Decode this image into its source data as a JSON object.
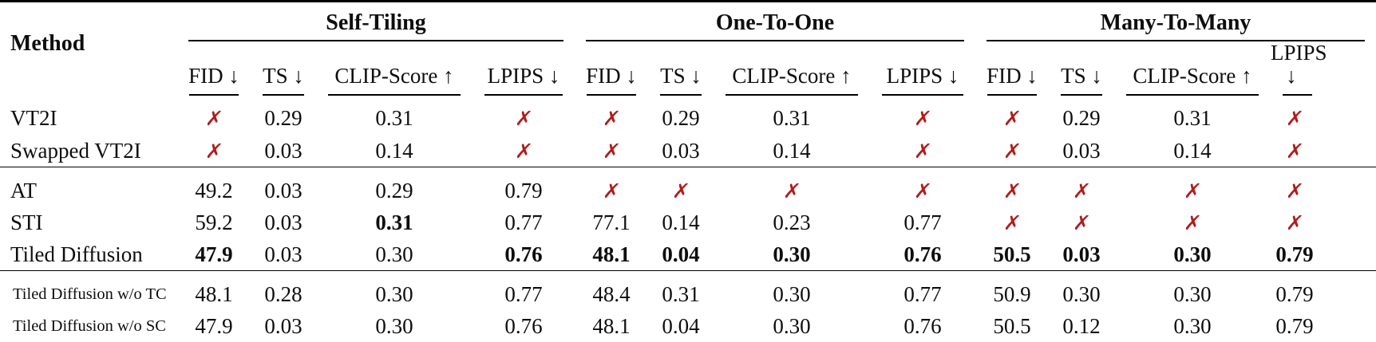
{
  "table": {
    "method_header": "Method",
    "missing_symbol": "✗",
    "missing_color": "#b11c1c",
    "groups": [
      {
        "label": "Self-Tiling"
      },
      {
        "label": "One-To-One"
      },
      {
        "label": "Many-To-Many"
      }
    ],
    "metrics": [
      "FID ↓",
      "TS ↓",
      "CLIP-Score ↑",
      "LPIPS ↓"
    ],
    "rows": [
      {
        "method": "VT2I",
        "small_label": false,
        "section_start": false,
        "cells": [
          {
            "x": true
          },
          {
            "v": "0.29"
          },
          {
            "v": "0.31"
          },
          {
            "x": true
          },
          {
            "x": true
          },
          {
            "v": "0.29"
          },
          {
            "v": "0.31"
          },
          {
            "x": true
          },
          {
            "x": true
          },
          {
            "v": "0.29"
          },
          {
            "v": "0.31"
          },
          {
            "x": true
          }
        ]
      },
      {
        "method": "Swapped VT2I",
        "small_label": false,
        "section_start": false,
        "cells": [
          {
            "x": true
          },
          {
            "v": "0.03"
          },
          {
            "v": "0.14"
          },
          {
            "x": true
          },
          {
            "x": true
          },
          {
            "v": "0.03"
          },
          {
            "v": "0.14"
          },
          {
            "x": true
          },
          {
            "x": true
          },
          {
            "v": "0.03"
          },
          {
            "v": "0.14"
          },
          {
            "x": true
          }
        ]
      },
      {
        "method": "AT",
        "small_label": false,
        "section_start": true,
        "cells": [
          {
            "v": "49.2"
          },
          {
            "v": "0.03"
          },
          {
            "v": "0.29"
          },
          {
            "v": "0.79"
          },
          {
            "x": true
          },
          {
            "x": true
          },
          {
            "x": true
          },
          {
            "x": true
          },
          {
            "x": true
          },
          {
            "x": true
          },
          {
            "x": true
          },
          {
            "x": true
          }
        ]
      },
      {
        "method": "STI",
        "small_label": false,
        "section_start": false,
        "cells": [
          {
            "v": "59.2"
          },
          {
            "v": "0.03"
          },
          {
            "v": "0.31",
            "b": true
          },
          {
            "v": "0.77"
          },
          {
            "v": "77.1"
          },
          {
            "v": "0.14"
          },
          {
            "v": "0.23"
          },
          {
            "v": "0.77"
          },
          {
            "x": true
          },
          {
            "x": true
          },
          {
            "x": true
          },
          {
            "x": true
          }
        ]
      },
      {
        "method": "Tiled Diffusion",
        "small_label": false,
        "section_start": false,
        "cells": [
          {
            "v": "47.9",
            "b": true
          },
          {
            "v": "0.03"
          },
          {
            "v": "0.30"
          },
          {
            "v": "0.76",
            "b": true
          },
          {
            "v": "48.1",
            "b": true
          },
          {
            "v": "0.04",
            "b": true
          },
          {
            "v": "0.30",
            "b": true
          },
          {
            "v": "0.76",
            "b": true
          },
          {
            "v": "50.5",
            "b": true
          },
          {
            "v": "0.03",
            "b": true
          },
          {
            "v": "0.30",
            "b": true
          },
          {
            "v": "0.79",
            "b": true
          }
        ]
      },
      {
        "method": "Tiled Diffusion w/o TC",
        "small_label": true,
        "section_start": true,
        "cells": [
          {
            "v": "48.1"
          },
          {
            "v": "0.28"
          },
          {
            "v": "0.30"
          },
          {
            "v": "0.77"
          },
          {
            "v": "48.4"
          },
          {
            "v": "0.31"
          },
          {
            "v": "0.30"
          },
          {
            "v": "0.77"
          },
          {
            "v": "50.9"
          },
          {
            "v": "0.30"
          },
          {
            "v": "0.30"
          },
          {
            "v": "0.79"
          }
        ]
      },
      {
        "method": "Tiled Diffusion w/o SC",
        "small_label": true,
        "section_start": false,
        "cells": [
          {
            "v": "47.9"
          },
          {
            "v": "0.03"
          },
          {
            "v": "0.30"
          },
          {
            "v": "0.76"
          },
          {
            "v": "48.1"
          },
          {
            "v": "0.04"
          },
          {
            "v": "0.30"
          },
          {
            "v": "0.76"
          },
          {
            "v": "50.5"
          },
          {
            "v": "0.12"
          },
          {
            "v": "0.30"
          },
          {
            "v": "0.79"
          }
        ]
      }
    ]
  }
}
